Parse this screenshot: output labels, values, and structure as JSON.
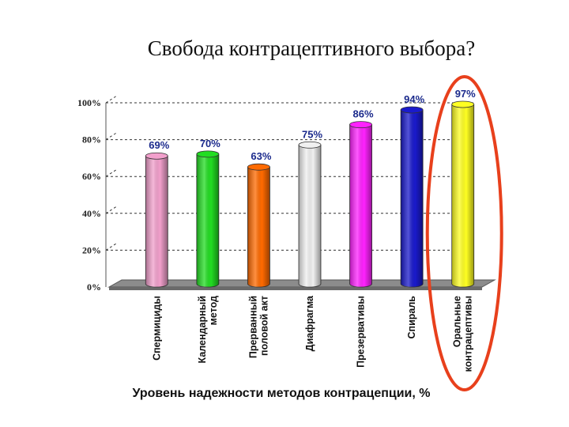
{
  "chart_data": {
    "type": "bar",
    "title": "Свобода контрацептивного выбора?",
    "xlabel": "Уровень надежности методов контрацепции, %",
    "ylabel": "",
    "ylim": [
      0,
      100
    ],
    "yticks": [
      "0%",
      "20%",
      "40%",
      "60%",
      "80%",
      "100%"
    ],
    "grid": true,
    "categories": [
      [
        "Спермициды"
      ],
      [
        "Календарный",
        "метод"
      ],
      [
        "Прерванный",
        "половой акт"
      ],
      [
        "Диафрагма"
      ],
      [
        "Презервативы"
      ],
      [
        "Спираль"
      ],
      [
        "Оральные",
        "контрацептивы"
      ]
    ],
    "values": [
      69,
      70,
      63,
      75,
      86,
      94,
      97
    ],
    "data_labels": [
      "69%",
      "70%",
      "63%",
      "75%",
      "86%",
      "94%",
      "97%"
    ],
    "colors": [
      "#f2a0cc",
      "#22dd22",
      "#ff6a00",
      "#f0f0f0",
      "#ff22ff",
      "#1a1acc",
      "#ffff22"
    ],
    "highlight": {
      "category_index": 6,
      "color": "#e8401c"
    }
  }
}
